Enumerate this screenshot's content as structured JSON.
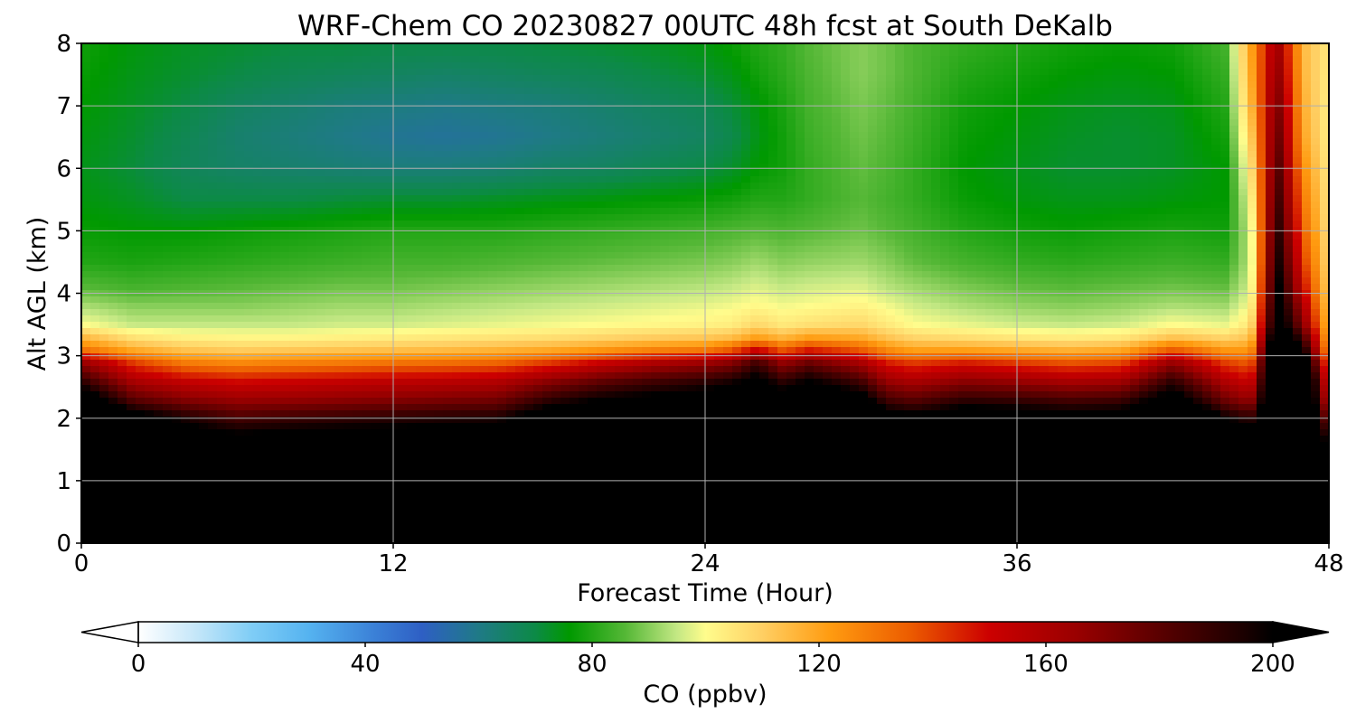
{
  "chart_data": {
    "type": "heatmap",
    "title": "WRF-Chem CO  20230827 00UTC 48h fcst at South DeKalb",
    "xlabel": "Forecast Time (Hour)",
    "ylabel": "Alt AGL (km)",
    "xlim": [
      0,
      48
    ],
    "ylim": [
      0,
      8
    ],
    "x_ticks": [
      0,
      12,
      24,
      36,
      48
    ],
    "x_tick_labels": [
      "0",
      "12",
      "24",
      "36",
      "48"
    ],
    "y_ticks": [
      0,
      1,
      2,
      3,
      4,
      5,
      6,
      7,
      8
    ],
    "y_tick_labels": [
      "0",
      "1",
      "2",
      "3",
      "4",
      "5",
      "6",
      "7",
      "8"
    ],
    "grid": true,
    "hours": [
      0,
      2,
      4,
      6,
      8,
      10,
      12,
      14,
      16,
      18,
      20,
      22,
      24,
      25,
      26,
      27,
      28,
      30,
      31,
      32,
      34,
      36,
      38,
      40,
      42,
      44,
      45,
      46,
      47,
      48
    ],
    "altitudes_km": [
      0,
      0.5,
      1,
      1.5,
      2,
      2.3,
      2.6,
      2.9,
      3.1,
      3.3,
      3.5,
      3.8,
      4.1,
      4.5,
      5,
      5.5,
      6,
      6.5,
      7,
      7.5,
      8
    ],
    "co_ppbv": [
      [
        240,
        240,
        240,
        240,
        240,
        215,
        190,
        165,
        130,
        115,
        100,
        93,
        86,
        80,
        77,
        75,
        74,
        75,
        76,
        77,
        78
      ],
      [
        240,
        240,
        240,
        240,
        210,
        180,
        160,
        140,
        118,
        105,
        95,
        90,
        84,
        79,
        76,
        73,
        71,
        72,
        73,
        74,
        75
      ],
      [
        240,
        240,
        240,
        220,
        195,
        170,
        152,
        128,
        112,
        102,
        95,
        90,
        85,
        80,
        76,
        70,
        67,
        68,
        70,
        72,
        73
      ],
      [
        240,
        240,
        240,
        215,
        185,
        165,
        148,
        125,
        110,
        101,
        95,
        90,
        86,
        81,
        77,
        70,
        65,
        64,
        66,
        70,
        72
      ],
      [
        240,
        240,
        240,
        218,
        188,
        166,
        150,
        127,
        111,
        101,
        95,
        91,
        87,
        82,
        78,
        70,
        64,
        62,
        64,
        68,
        71
      ],
      [
        240,
        240,
        240,
        220,
        190,
        168,
        152,
        128,
        112,
        102,
        96,
        92,
        88,
        83,
        79,
        71,
        63,
        60,
        62,
        67,
        71
      ],
      [
        240,
        240,
        240,
        220,
        192,
        170,
        154,
        130,
        113,
        103,
        96,
        92,
        88,
        84,
        80,
        72,
        62,
        58,
        61,
        66,
        70
      ],
      [
        240,
        240,
        240,
        222,
        194,
        172,
        155,
        131,
        114,
        104,
        97,
        93,
        89,
        84,
        80,
        72,
        62,
        57,
        60,
        65,
        70
      ],
      [
        240,
        240,
        240,
        222,
        195,
        174,
        157,
        133,
        116,
        105,
        98,
        94,
        90,
        85,
        80,
        73,
        63,
        58,
        61,
        66,
        70
      ],
      [
        240,
        240,
        240,
        240,
        215,
        190,
        168,
        140,
        118,
        106,
        99,
        95,
        91,
        86,
        81,
        74,
        65,
        60,
        62,
        67,
        71
      ],
      [
        240,
        240,
        240,
        240,
        220,
        200,
        178,
        150,
        122,
        108,
        100,
        96,
        92,
        87,
        82,
        75,
        66,
        62,
        64,
        68,
        72
      ],
      [
        240,
        240,
        240,
        240,
        225,
        205,
        185,
        158,
        126,
        110,
        101,
        97,
        93,
        88,
        83,
        76,
        68,
        64,
        66,
        70,
        73
      ],
      [
        240,
        240,
        240,
        240,
        228,
        210,
        190,
        163,
        128,
        111,
        102,
        98,
        94,
        89,
        84,
        77,
        70,
        66,
        68,
        72,
        75
      ],
      [
        240,
        240,
        240,
        240,
        230,
        215,
        195,
        168,
        135,
        113,
        103,
        99,
        95,
        90,
        85,
        78,
        72,
        69,
        71,
        74,
        77
      ],
      [
        240,
        240,
        240,
        240,
        235,
        220,
        205,
        185,
        150,
        120,
        108,
        101,
        97,
        92,
        86,
        80,
        76,
        74,
        75,
        78,
        80
      ],
      [
        240,
        240,
        240,
        240,
        225,
        210,
        190,
        165,
        135,
        115,
        104,
        99,
        95,
        90,
        85,
        80,
        78,
        78,
        79,
        81,
        82
      ],
      [
        240,
        240,
        240,
        240,
        232,
        218,
        200,
        175,
        145,
        120,
        106,
        100,
        96,
        91,
        86,
        82,
        82,
        83,
        84,
        85,
        86
      ],
      [
        240,
        240,
        240,
        240,
        225,
        208,
        185,
        160,
        135,
        118,
        108,
        102,
        97,
        92,
        88,
        86,
        87,
        88,
        89,
        90,
        90
      ],
      [
        240,
        240,
        240,
        240,
        210,
        185,
        165,
        145,
        125,
        112,
        104,
        99,
        94,
        90,
        86,
        84,
        85,
        86,
        87,
        88,
        88
      ],
      [
        240,
        240,
        240,
        240,
        205,
        180,
        160,
        140,
        120,
        108,
        100,
        96,
        92,
        87,
        84,
        82,
        82,
        83,
        84,
        85,
        85
      ],
      [
        240,
        240,
        240,
        240,
        215,
        190,
        168,
        145,
        120,
        106,
        98,
        93,
        89,
        84,
        80,
        77,
        76,
        77,
        78,
        80,
        82
      ],
      [
        240,
        240,
        240,
        240,
        212,
        188,
        165,
        140,
        118,
        104,
        96,
        91,
        87,
        82,
        78,
        75,
        74,
        75,
        76,
        78,
        80
      ],
      [
        240,
        240,
        240,
        240,
        208,
        184,
        160,
        136,
        116,
        103,
        95,
        90,
        86,
        81,
        77,
        74,
        72,
        73,
        74,
        76,
        78
      ],
      [
        240,
        240,
        240,
        240,
        210,
        186,
        162,
        138,
        118,
        104,
        96,
        91,
        87,
        82,
        78,
        74,
        72,
        72,
        73,
        75,
        77
      ],
      [
        240,
        240,
        240,
        240,
        235,
        210,
        190,
        165,
        135,
        112,
        100,
        93,
        88,
        83,
        79,
        75,
        73,
        73,
        74,
        76,
        78
      ],
      [
        240,
        240,
        240,
        240,
        200,
        175,
        158,
        140,
        122,
        108,
        98,
        92,
        87,
        82,
        78,
        76,
        76,
        78,
        80,
        82,
        84
      ],
      [
        240,
        240,
        240,
        230,
        190,
        165,
        150,
        135,
        122,
        112,
        105,
        100,
        97,
        95,
        96,
        100,
        105,
        110,
        115,
        118,
        120
      ],
      [
        240,
        240,
        240,
        240,
        240,
        240,
        240,
        240,
        235,
        225,
        215,
        210,
        205,
        200,
        195,
        190,
        185,
        180,
        175,
        170,
        165
      ],
      [
        240,
        240,
        240,
        240,
        240,
        240,
        240,
        220,
        200,
        185,
        170,
        160,
        150,
        142,
        135,
        130,
        125,
        120,
        118,
        116,
        115
      ],
      [
        220,
        230,
        230,
        200,
        170,
        150,
        140,
        130,
        120,
        115,
        112,
        110,
        108,
        106,
        105,
        104,
        103,
        102,
        102,
        103,
        104
      ]
    ],
    "colorbar": {
      "label": "CO  (ppbv)",
      "min": 0,
      "max": 200,
      "extend": "both",
      "ticks": [
        0,
        40,
        80,
        120,
        160,
        200
      ],
      "tick_labels": [
        "0",
        "40",
        "80",
        "120",
        "160",
        "200"
      ],
      "stops": [
        {
          "value": 0,
          "color": "#ffffff"
        },
        {
          "value": 10,
          "color": "#c6e7f9"
        },
        {
          "value": 20,
          "color": "#7fcdf6"
        },
        {
          "value": 30,
          "color": "#55b3f0"
        },
        {
          "value": 42,
          "color": "#3a7fd6"
        },
        {
          "value": 50,
          "color": "#2e5fc4"
        },
        {
          "value": 60,
          "color": "#1f7a86"
        },
        {
          "value": 70,
          "color": "#0c8a46"
        },
        {
          "value": 76,
          "color": "#009900"
        },
        {
          "value": 86,
          "color": "#56b837"
        },
        {
          "value": 95,
          "color": "#c4e884"
        },
        {
          "value": 100,
          "color": "#fffc8c"
        },
        {
          "value": 110,
          "color": "#ffcf63"
        },
        {
          "value": 122,
          "color": "#ff9b10"
        },
        {
          "value": 136,
          "color": "#ec5c00"
        },
        {
          "value": 150,
          "color": "#cc0000"
        },
        {
          "value": 165,
          "color": "#9b0000"
        },
        {
          "value": 180,
          "color": "#5a0000"
        },
        {
          "value": 195,
          "color": "#1a0000"
        },
        {
          "value": 200,
          "color": "#000000"
        }
      ],
      "under_color": "#ffffff",
      "over_color": "#000000"
    }
  }
}
